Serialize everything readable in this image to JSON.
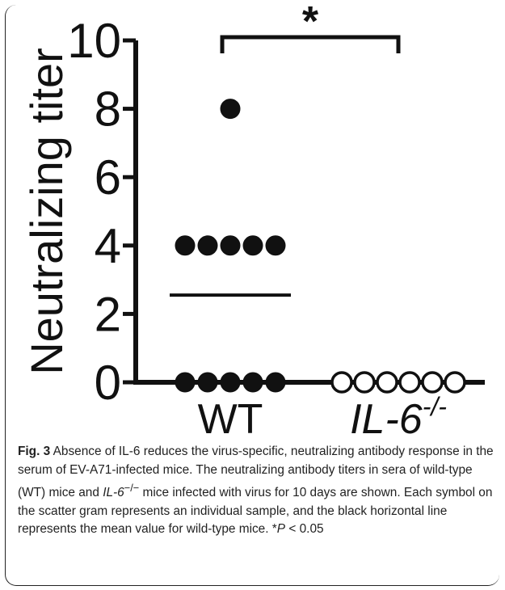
{
  "chart_data": {
    "type": "scatter",
    "ylabel": "Neutralizing titer",
    "xlabel": "",
    "ylim": [
      0,
      10
    ],
    "yticks": [
      "0",
      "2",
      "4",
      "6",
      "8",
      "10"
    ],
    "categories": [
      "WT",
      "IL-6-/-"
    ],
    "category_labels": [
      {
        "main": "WT",
        "sup": ""
      },
      {
        "main": "IL-6",
        "sup": "-/-"
      }
    ],
    "series": [
      {
        "category": "WT",
        "values": [
          8,
          4,
          4,
          4,
          4,
          4,
          0,
          0,
          0,
          0,
          0
        ],
        "marker": "filled",
        "mean": 2.55
      },
      {
        "category": "IL-6-/-",
        "values": [
          0,
          0,
          0,
          0,
          0,
          0
        ],
        "marker": "open"
      }
    ],
    "significance": {
      "pair": [
        "WT",
        "IL-6-/-"
      ],
      "label": "*"
    }
  },
  "caption": {
    "label": "Fig. 3",
    "text1": " Absence of IL-6 reduces the virus-specific, neutralizing antibody response in the serum of EV-A71-infected mice. The neutralizing antibody titers in sera of wild-type (WT) mice and ",
    "gene": "IL-6",
    "sup": "−/−",
    "text2": " mice infected with virus for 10 days are shown. Each symbol on the scatter gram represents an individual sample, and the black horizontal line represents the mean value for wild-type mice. *",
    "p_italic": "P",
    "text3": " < 0.05"
  }
}
